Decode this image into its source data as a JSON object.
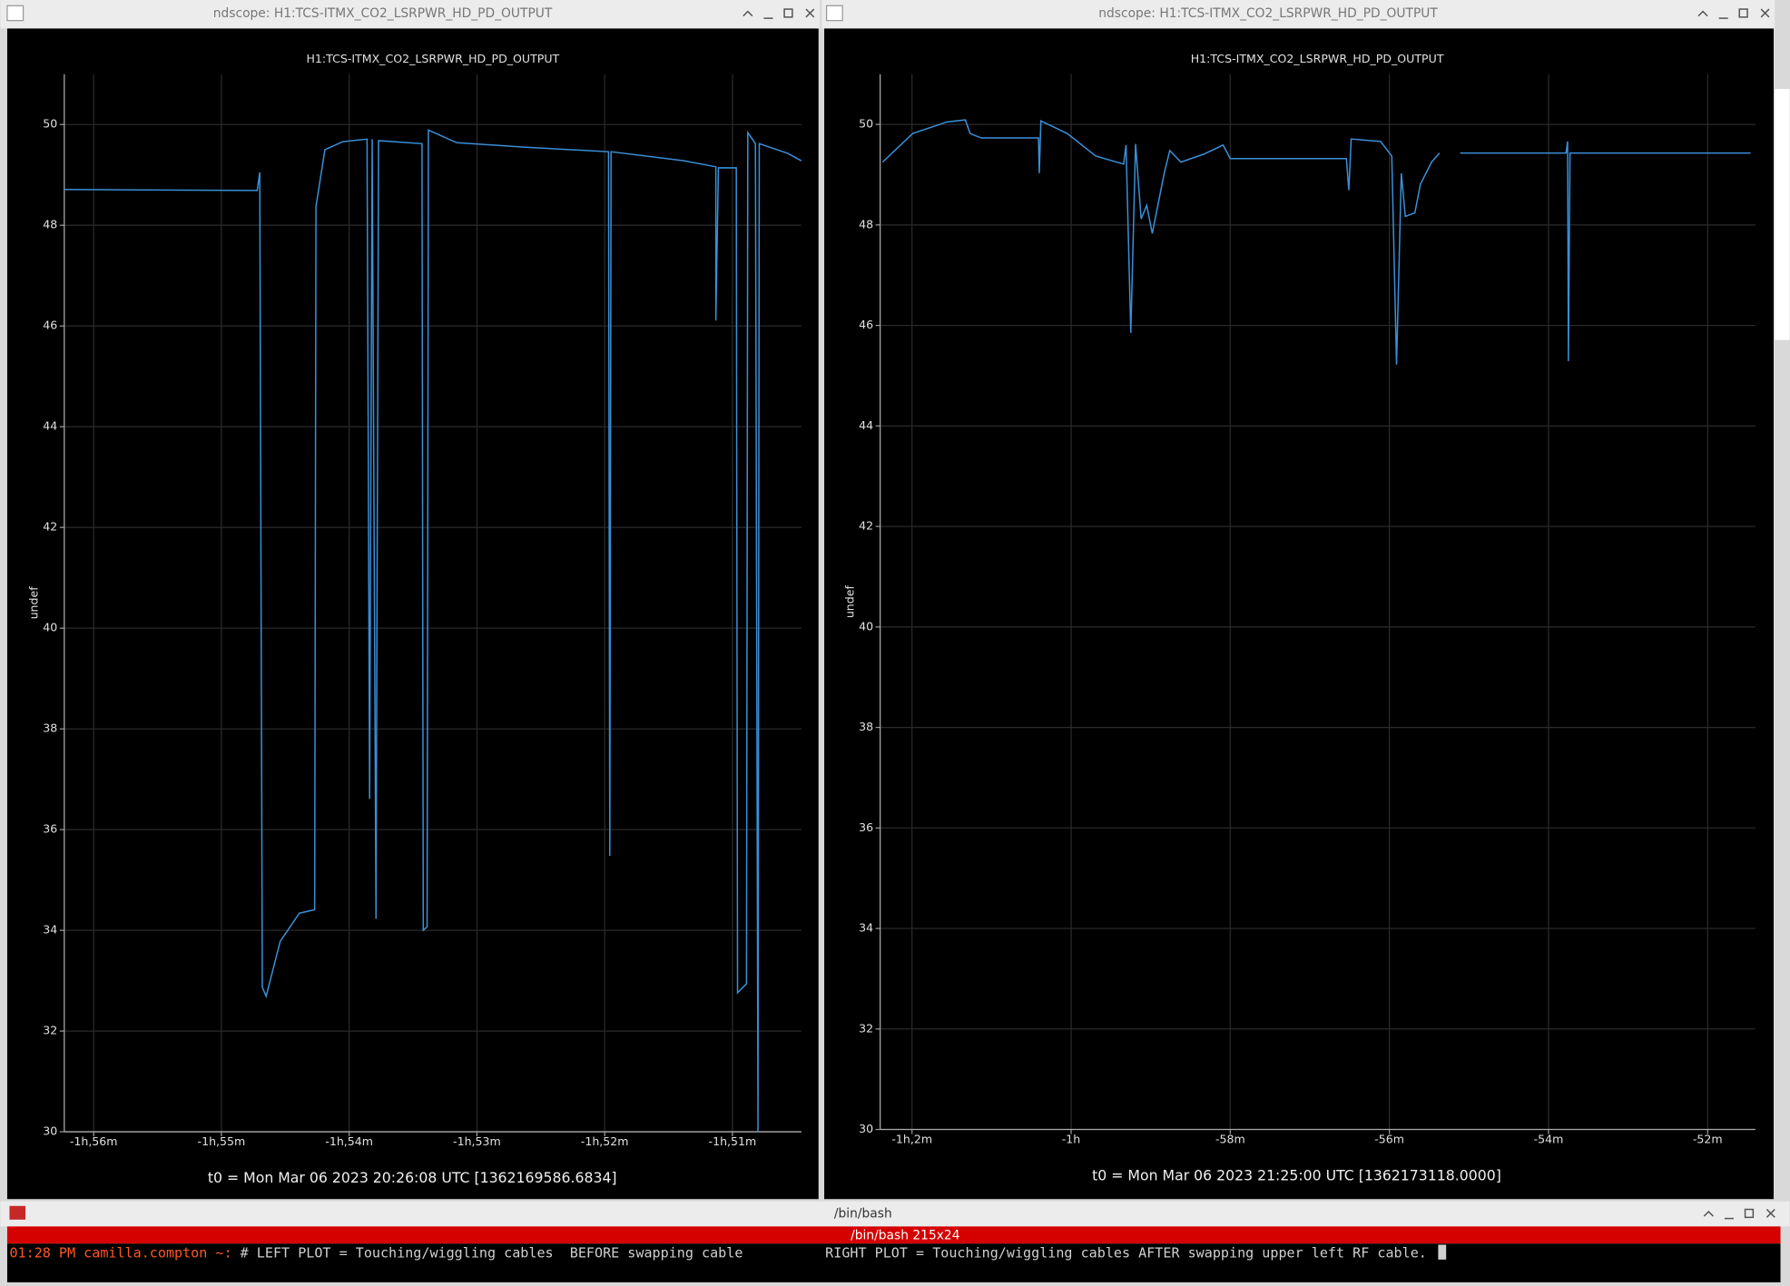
{
  "windows": [
    {
      "title": "ndscope: H1:TCS-ITMX_CO2_LSRPWR_HD_PD_OUTPUT"
    },
    {
      "title": "ndscope: H1:TCS-ITMX_CO2_LSRPWR_HD_PD_OUTPUT"
    }
  ],
  "chart_data": [
    {
      "type": "line",
      "title": "H1:TCS-ITMX_CO2_LSRPWR_HD_PD_OUTPUT",
      "ylabel": "undef",
      "xlabel": "t0 = Mon Mar 06 2023 20:26:08 UTC [1362169586.6834]",
      "color": "#3a8fd8",
      "grid": true,
      "xlim": [
        -116.23,
        -110.46
      ],
      "ylim": [
        30,
        51
      ],
      "xticks": [
        {
          "value": -116,
          "label": "-1h,56m"
        },
        {
          "value": -115,
          "label": "-1h,55m"
        },
        {
          "value": -114,
          "label": "-1h,54m"
        },
        {
          "value": -113,
          "label": "-1h,53m"
        },
        {
          "value": -112,
          "label": "-1h,52m"
        },
        {
          "value": -111,
          "label": "-1h,51m"
        }
      ],
      "yticks": [
        30,
        32,
        34,
        36,
        38,
        40,
        42,
        44,
        46,
        48,
        50
      ],
      "x": [
        -116.23,
        -114.72,
        -114.7,
        -114.68,
        -114.65,
        -114.54,
        -114.39,
        -114.27,
        -114.26,
        -114.19,
        -114.05,
        -113.86,
        -113.84,
        -113.82,
        -113.79,
        -113.77,
        -113.43,
        -113.42,
        -113.39,
        -113.38,
        -113.16,
        -112.63,
        -111.97,
        -111.96,
        -111.95,
        -111.38,
        -111.13,
        -111.13,
        -111.11,
        -110.97,
        -110.96,
        -110.89,
        -110.88,
        -110.82,
        -110.8,
        -110.79,
        -110.57,
        -110.46
      ],
      "values": [
        48.71,
        48.69,
        49.05,
        32.87,
        32.69,
        33.78,
        34.34,
        34.41,
        48.37,
        49.5,
        49.66,
        49.71,
        36.61,
        49.71,
        34.23,
        49.68,
        49.62,
        34.0,
        34.07,
        49.89,
        49.64,
        49.55,
        49.46,
        35.48,
        49.46,
        49.28,
        49.16,
        46.11,
        49.14,
        49.14,
        32.76,
        32.94,
        49.84,
        49.62,
        30.0,
        49.62,
        49.43,
        49.28
      ]
    },
    {
      "type": "line",
      "title": "H1:TCS-ITMX_CO2_LSRPWR_HD_PD_OUTPUT",
      "ylabel": "undef",
      "xlabel": "t0 = Mon Mar 06 2023 21:25:00 UTC [1362173118.0000]",
      "color": "#3a8fd8",
      "grid": true,
      "xlim": [
        -62.4,
        -51.4
      ],
      "ylim": [
        30,
        51
      ],
      "xticks": [
        {
          "value": -62,
          "label": "-1h,2m"
        },
        {
          "value": -60,
          "label": "-1h"
        },
        {
          "value": -58,
          "label": "-58m"
        },
        {
          "value": -56,
          "label": "-56m"
        },
        {
          "value": -54,
          "label": "-54m"
        },
        {
          "value": -52,
          "label": "-52m"
        }
      ],
      "yticks": [
        30,
        32,
        34,
        36,
        38,
        40,
        42,
        44,
        46,
        48,
        50
      ],
      "x": [
        -62.37,
        -61.99,
        -61.56,
        -61.33,
        -61.27,
        -61.13,
        -60.41,
        -60.4,
        -60.38,
        -60.05,
        -59.69,
        -59.34,
        -59.31,
        -59.25,
        -59.19,
        -59.12,
        -59.05,
        -58.98,
        -58.83,
        -58.76,
        -58.62,
        -58.33,
        -58.09,
        -58.0,
        -56.54,
        -56.51,
        -56.48,
        -56.11,
        -55.97,
        -55.91,
        -55.85,
        -55.8,
        -55.68,
        -55.61,
        -55.47,
        -55.37,
        -55.25,
        -55.11,
        -53.78,
        -53.76,
        -53.75,
        -53.73,
        -51.46
      ],
      "values": [
        49.25,
        49.82,
        50.05,
        50.09,
        49.82,
        49.73,
        49.73,
        49.03,
        50.07,
        49.82,
        49.37,
        49.21,
        49.59,
        45.85,
        49.61,
        48.12,
        48.39,
        47.83,
        49.03,
        49.48,
        49.25,
        49.41,
        49.59,
        49.32,
        49.32,
        48.69,
        49.71,
        49.66,
        49.37,
        45.22,
        49.03,
        48.17,
        48.24,
        48.81,
        49.25,
        49.43,
        null,
        49.43,
        49.43,
        49.66,
        45.29,
        49.43,
        49.43
      ]
    }
  ],
  "terminal": {
    "title": "/bin/bash",
    "tab": "/bin/bash 215x24",
    "prompt": "01:28 PM camilla.compton ~:",
    "command": "# LEFT PLOT = Touching/wiggling cables  BEFORE swapping cable          RIGHT PLOT = Touching/wiggling cables AFTER swapping upper left RF cable."
  }
}
